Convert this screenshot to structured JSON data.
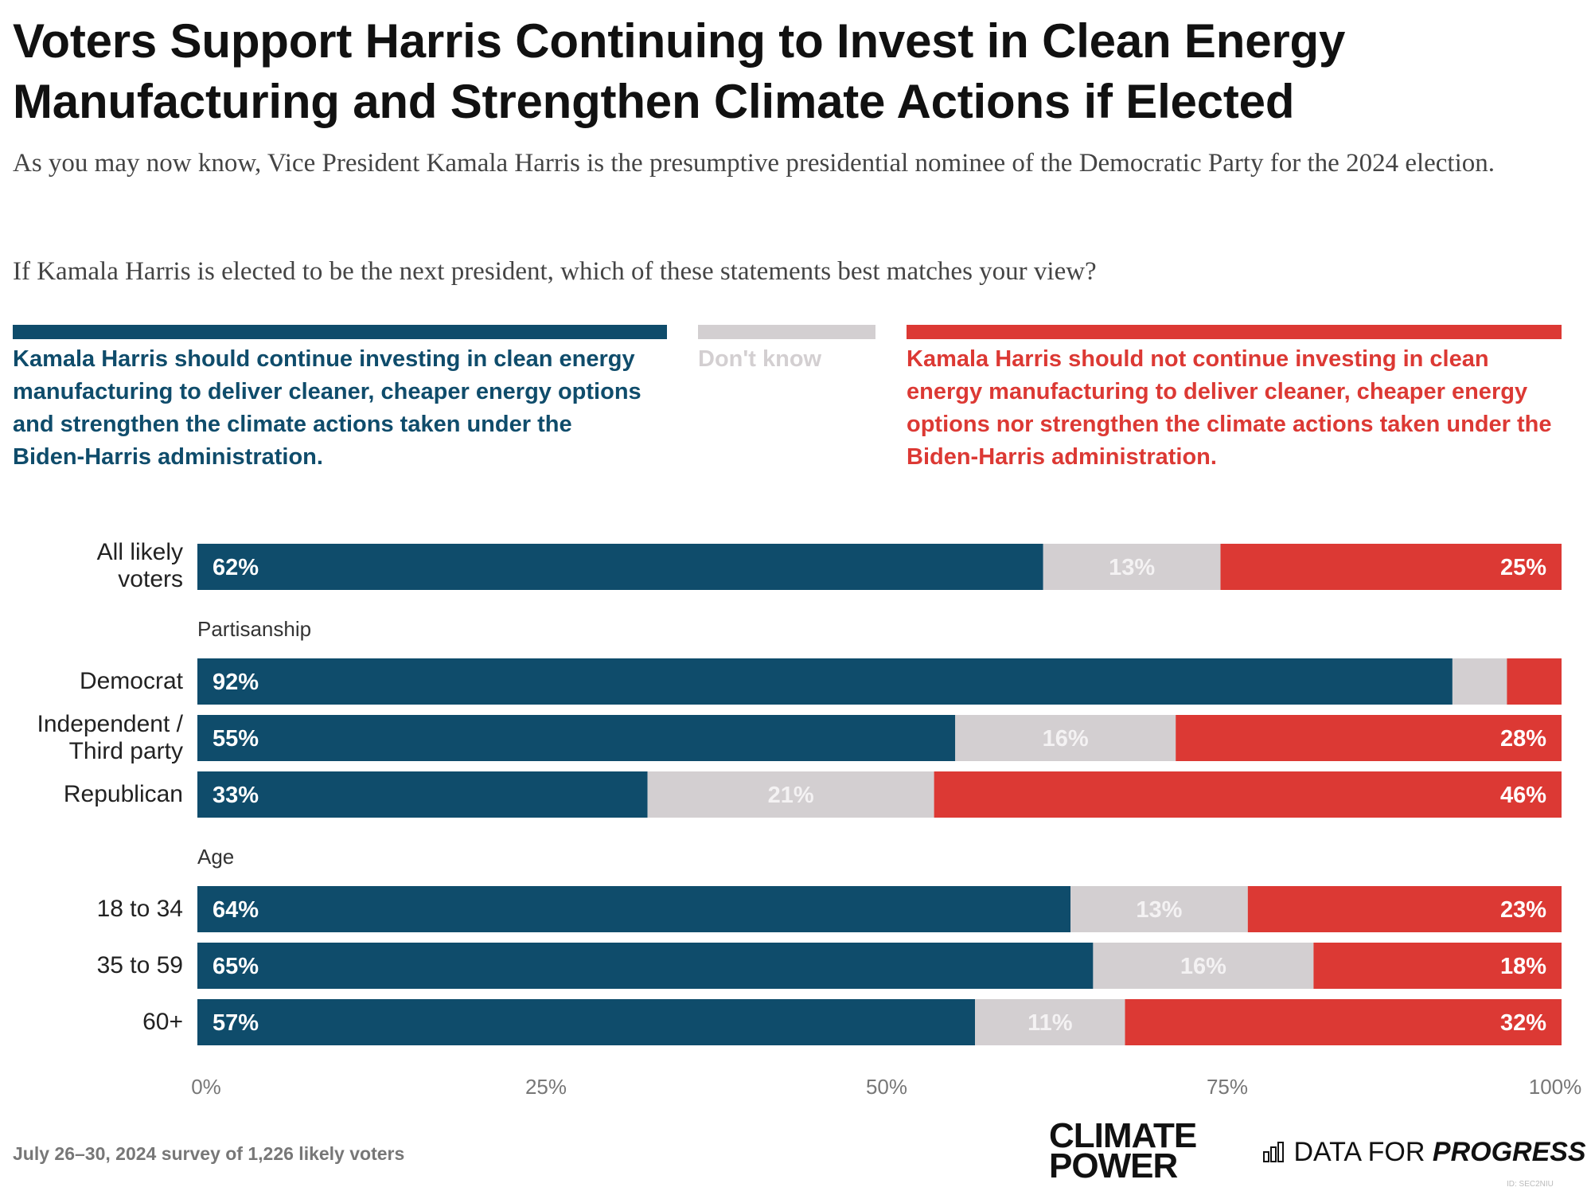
{
  "header": {
    "title": "Voters Support Harris Continuing to Invest in Clean Energy Manufacturing and Strengthen Climate Actions if Elected",
    "subtitle": "As you may now know, Vice President Kamala Harris is the presumptive presidential nominee of the Democratic Party for the 2024 election.",
    "question": "If Kamala Harris is elected to be the next president, which of these statements best matches your view?"
  },
  "legend": {
    "support": "Kamala Harris should continue investing in clean energy manufacturing to deliver cleaner, cheaper energy options and strengthen the climate actions taken under the Biden-Harris administration.",
    "dont_know": "Don't know",
    "oppose": "Kamala Harris should not continue investing in clean energy manufacturing to deliver cleaner, cheaper energy options nor strengthen the climate actions taken under the Biden-Harris administration."
  },
  "colors": {
    "support": "#0f4c6b",
    "dont_know": "#d3cfd1",
    "oppose": "#dc3934"
  },
  "chart_data": {
    "type": "bar",
    "orientation": "horizontal",
    "stacked": true,
    "xlim": [
      0,
      100
    ],
    "x_ticks": [
      "0%",
      "25%",
      "50%",
      "75%",
      "100%"
    ],
    "series_names": [
      "support",
      "dont_know",
      "oppose"
    ],
    "groups": [
      {
        "label": "",
        "rows": [
          {
            "label": "All likely voters",
            "values": [
              62,
              13,
              25
            ],
            "labels": [
              "62%",
              "13%",
              "25%"
            ]
          }
        ]
      },
      {
        "label": "Partisanship",
        "rows": [
          {
            "label": "Democrat",
            "values": [
              92,
              4,
              4
            ],
            "labels": [
              "92%",
              "",
              ""
            ]
          },
          {
            "label": "Independent / Third party",
            "values": [
              55,
              16,
              28
            ],
            "labels": [
              "55%",
              "16%",
              "28%"
            ]
          },
          {
            "label": "Republican",
            "values": [
              33,
              21,
              46
            ],
            "labels": [
              "33%",
              "21%",
              "46%"
            ]
          }
        ]
      },
      {
        "label": "Age",
        "rows": [
          {
            "label": "18 to 34",
            "values": [
              64,
              13,
              23
            ],
            "labels": [
              "64%",
              "13%",
              "23%"
            ]
          },
          {
            "label": "35 to 59",
            "values": [
              65,
              16,
              18
            ],
            "labels": [
              "65%",
              "16%",
              "18%"
            ]
          },
          {
            "label": "60+",
            "values": [
              57,
              11,
              32
            ],
            "labels": [
              "57%",
              "11%",
              "32%"
            ]
          }
        ]
      }
    ]
  },
  "footer": {
    "note": "July 26–30, 2024 survey of 1,226 likely voters",
    "logo_left_line1": "CLIMATE",
    "logo_left_line2": "POWER",
    "logo_right_prefix": "DATA FOR",
    "logo_right_emph": "PROGRESS",
    "watermark": "ID: SEC2NIU"
  }
}
